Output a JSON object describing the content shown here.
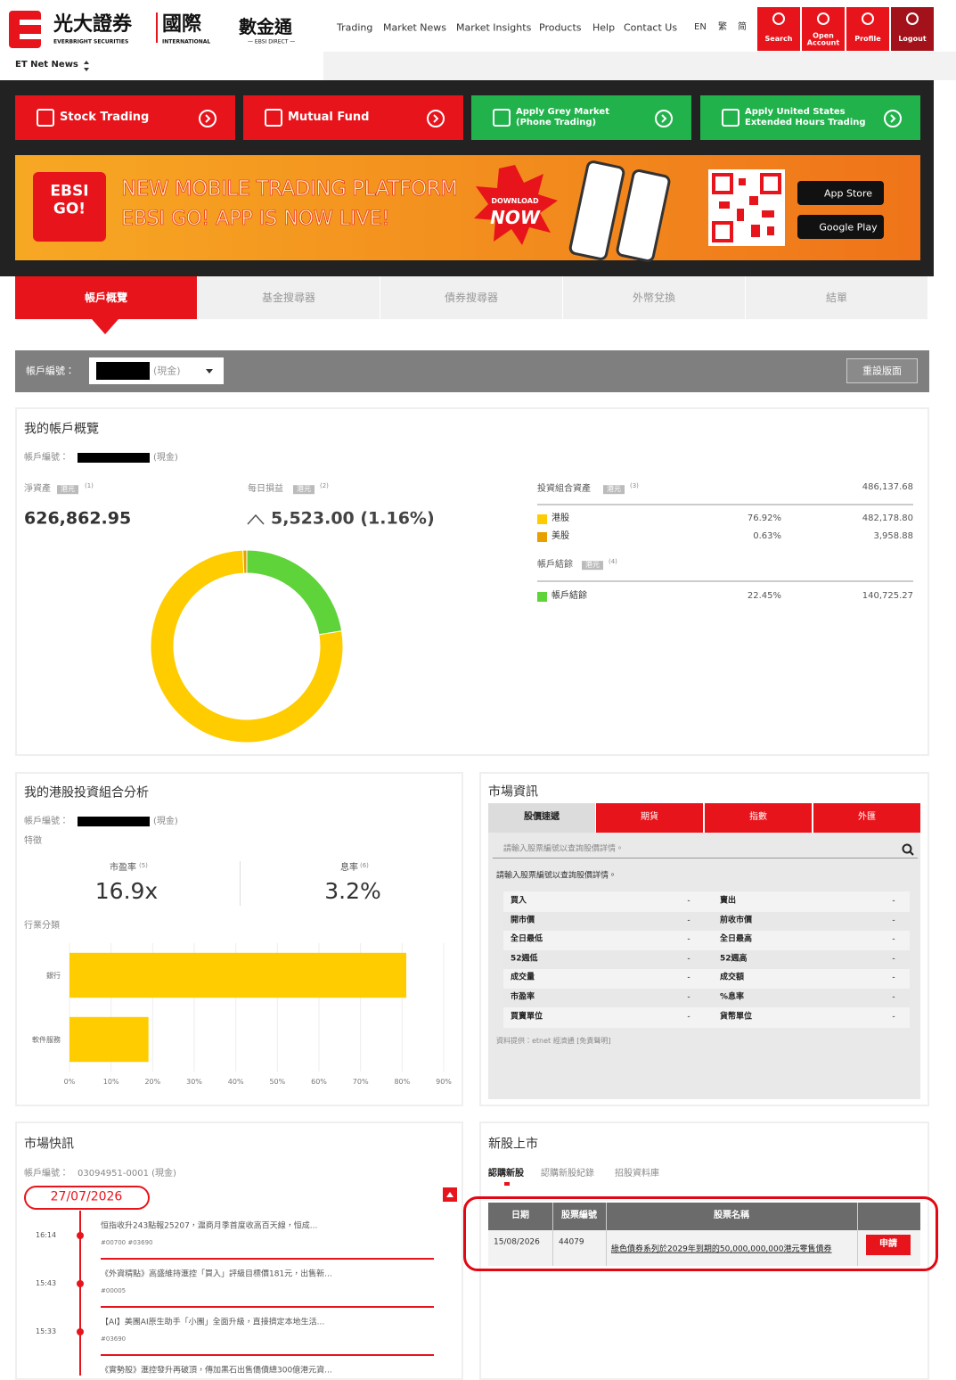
{
  "header": {
    "logo": {
      "brand": "光大證券",
      "brand_en": "EVERBRIGHT SECURITIES",
      "intl": "國際",
      "intl_en": "INTERNATIONAL",
      "product": "數金通",
      "product_en": "— EBSI DIRECT —"
    },
    "nav": [
      "Trading",
      "Market News",
      "Market Insights",
      "Products",
      "Help",
      "Contact Us"
    ],
    "languages": [
      "EN",
      "繁",
      "简"
    ],
    "actions": [
      "Search",
      "Open Account",
      "Profile",
      "Logout"
    ]
  },
  "news_source": "ET Net News",
  "quick_links": [
    "Stock Trading",
    "Mutual Fund",
    "Apply Grey Market (Phone Trading)",
    "Apply United States Extended Hours Trading"
  ],
  "banner": {
    "logo": "EBSI GO!",
    "headline": "NEW MOBILE TRADING PLATFORM",
    "subline": "EBSI GO! APP IS NOW LIVE!",
    "cta_top": "DOWNLOAD",
    "cta": "NOW",
    "stores": [
      "App Store",
      "Google Play"
    ]
  },
  "tabs": [
    "帳戶概覽",
    "基金搜尋器",
    "債券搜尋器",
    "外幣兌換",
    "結單"
  ],
  "account_bar": {
    "label": "帳戶編號：",
    "type": "(現金)",
    "reset": "重設版面"
  },
  "overview": {
    "title": "我的帳戶概覽",
    "account_label": "帳戶編號：",
    "account_type": "(現金)",
    "currency": "港元",
    "net_assets_label": "淨資產",
    "net_assets_note": "(1)",
    "net_assets": "626,862.95",
    "daily_pl_label": "每日損益",
    "daily_pl_note": "(2)",
    "daily_pl": "5,523.00 (1.16%)",
    "portfolio_label": "投資組合資產",
    "portfolio_note": "(3)",
    "portfolio_total": "486,137.68",
    "holdings": [
      {
        "name": "港股",
        "color": "#ffcc00",
        "percent": {
          "value": 76.92,
          "label": "76.92%"
        },
        "amount": "482,178.80"
      },
      {
        "name": "美股",
        "color": "#e8a000",
        "percent": {
          "value": 0.63,
          "label": "0.63%"
        },
        "amount": "3,958.88"
      }
    ],
    "balance_label": "帳戶結餘",
    "balance_note": "(4)",
    "balance": {
      "name": "帳戶結餘",
      "color": "#5fd33a",
      "percent": {
        "value": 22.45,
        "label": "22.45%"
      },
      "amount": "140,725.27"
    }
  },
  "analysis": {
    "title": "我的港股投資組合分析",
    "account_label": "帳戶編號：",
    "account_type": "(現金)",
    "features_label": "特徵",
    "pe_label": "市盈率",
    "pe_note": "(5)",
    "pe": "16.9x",
    "yield_label": "息率",
    "yield_note": "(6)",
    "yield": "3.2%",
    "industry_label": "行業分類",
    "chart": {
      "type": "bar",
      "categories": [
        "銀行",
        "軟件服務"
      ],
      "values": [
        81,
        19
      ],
      "color": "#ffcc00",
      "xlim": [
        0,
        90
      ],
      "xticks": [
        {
          "value": 0,
          "label": "0%"
        },
        {
          "value": 10,
          "label": "10%"
        },
        {
          "value": 20,
          "label": "20%"
        },
        {
          "value": 30,
          "label": "30%"
        },
        {
          "value": 40,
          "label": "40%"
        },
        {
          "value": 50,
          "label": "50%"
        },
        {
          "value": 60,
          "label": "60%"
        },
        {
          "value": 70,
          "label": "70%"
        },
        {
          "value": 80,
          "label": "80%"
        },
        {
          "value": 90,
          "label": "90%"
        }
      ],
      "grid": true
    }
  },
  "market": {
    "title": "市場資訊",
    "tabs": [
      "股價速遞",
      "期貨",
      "指數",
      "外匯"
    ],
    "search_placeholder": "請輸入股票編號以查詢股價詳情。",
    "message": "請輸入股票編號以查詢股價詳情。",
    "rows": [
      [
        "買入",
        "-",
        "賣出",
        "-"
      ],
      [
        "開市價",
        "-",
        "前收市價",
        "-"
      ],
      [
        "全日最低",
        "-",
        "全日最高",
        "-"
      ],
      [
        "52週低",
        "-",
        "52週高",
        "-"
      ],
      [
        "成交量",
        "-",
        "成交額",
        "-"
      ],
      [
        "市盈率",
        "-",
        "%息率",
        "-"
      ],
      [
        "買賣單位",
        "-",
        "貨幣單位",
        "-"
      ]
    ],
    "source": "資料提供：etnet 經濟通 [免責聲明]"
  },
  "flash": {
    "title": "市場快訊",
    "account_label": "帳戶編號：",
    "account": "03094951-0001 (現金)",
    "date": "27/07/2026",
    "items": [
      {
        "time": "16:14",
        "headline": "恒指收升243點報25207，滬商月季首度收高百天線，恒成...",
        "codes": "#00700 #03690"
      },
      {
        "time": "15:43",
        "headline": "《外資精點》高盛維持滙控「買入」評級目標價181元，出售新...",
        "codes": "#00005"
      },
      {
        "time": "15:33",
        "headline": "【AI】美團AI原生助手「小團」全面升級，直接擠定本地生活...",
        "codes": "#03690"
      },
      {
        "headline": "《實勢股》滙控發升再破頂，傳加黑石出售僑債總300億港元資..."
      }
    ]
  },
  "ipo": {
    "title": "新股上市",
    "tabs": [
      "認購新股",
      "認購新股紀錄",
      "招股資料庫"
    ],
    "columns": [
      "日期",
      "股票編號",
      "股票名稱"
    ],
    "rows": [
      {
        "date": "15/08/2026",
        "code": "44079",
        "name": "綠色債券系列於2029年到期的50,000,000,000港元零售債券",
        "action": "申請"
      }
    ]
  }
}
